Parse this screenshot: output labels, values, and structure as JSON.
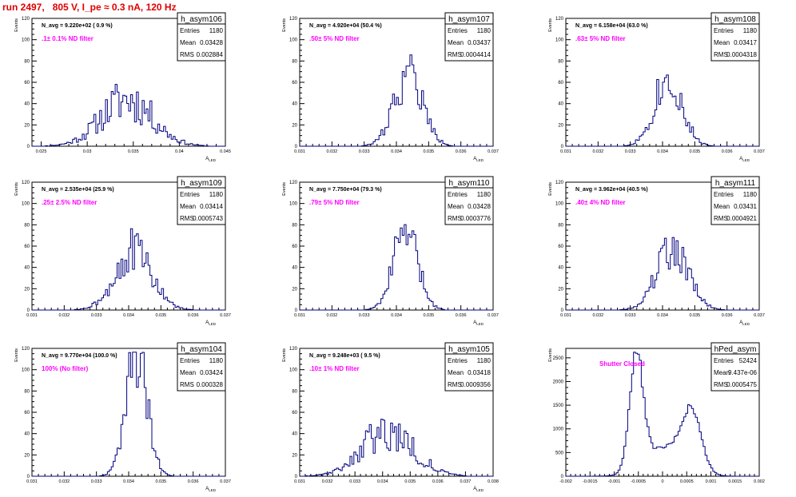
{
  "run_title": "run 2497,   805 V, I_pe ≈ 0.3 nA, 120 Hz",
  "colors": {
    "title": "#e00000",
    "hist": "#000080",
    "annotation": "#ff00ff",
    "frame": "#000000"
  },
  "chart_data": [
    {
      "type": "histogram",
      "name": "h_asym106",
      "navg": "N_avg = 9.220e+02 ( 0.9 %)",
      "filter_label": ".1± 0.1% ND filter",
      "stats": {
        "entries": "1180",
        "mean": "0.03428",
        "rms": "0.002884"
      },
      "xlabel": "A_LED",
      "ylabel": "Events",
      "xlim": [
        0.024,
        0.045
      ],
      "ylim": [
        0,
        120
      ],
      "xticks": [
        0.025,
        0.03,
        0.035,
        0.04,
        0.045
      ],
      "xtick_labels": [
        "0.025",
        "0.03",
        "0.035",
        "0.04",
        "0.045"
      ],
      "yticks": [
        0,
        20,
        40,
        60,
        80,
        100,
        120
      ],
      "peaks": [
        {
          "mu": 0.0343,
          "sigma": 0.0028,
          "amp": 44
        }
      ],
      "noise": 0.5,
      "seed": 11
    },
    {
      "type": "histogram",
      "name": "h_asym107",
      "navg": "N_avg = 4.920e+04 (50.4 %)",
      "filter_label": ".50± 5% ND filter",
      "stats": {
        "entries": "1180",
        "mean": "0.03437",
        "rms": "0.0004414"
      },
      "xlabel": "A_LED",
      "ylabel": "Events",
      "xlim": [
        0.031,
        0.037
      ],
      "ylim": [
        0,
        120
      ],
      "xticks": [
        0.031,
        0.032,
        0.033,
        0.034,
        0.035,
        0.036,
        0.037
      ],
      "xtick_labels": [
        "0.031",
        "0.032",
        "0.033",
        "0.034",
        "0.035",
        "0.036",
        "0.037"
      ],
      "yticks": [
        0,
        20,
        40,
        60,
        80,
        100,
        120
      ],
      "peaks": [
        {
          "mu": 0.03437,
          "sigma": 0.00044,
          "amp": 68
        }
      ],
      "noise": 0.35,
      "seed": 22
    },
    {
      "type": "histogram",
      "name": "h_asym108",
      "navg": "N_avg = 6.158e+04 (63.0 %)",
      "filter_label": ".63± 5% ND filter",
      "stats": {
        "entries": "1180",
        "mean": "0.03417",
        "rms": "0.0004318"
      },
      "xlabel": "A_LED",
      "ylabel": "Events",
      "xlim": [
        0.031,
        0.037
      ],
      "ylim": [
        0,
        120
      ],
      "xticks": [
        0.031,
        0.032,
        0.033,
        0.034,
        0.035,
        0.036,
        0.037
      ],
      "xtick_labels": [
        "0.031",
        "0.032",
        "0.033",
        "0.034",
        "0.035",
        "0.036",
        "0.037"
      ],
      "yticks": [
        0,
        20,
        40,
        60,
        80,
        100,
        120
      ],
      "peaks": [
        {
          "mu": 0.03417,
          "sigma": 0.00043,
          "amp": 64
        }
      ],
      "noise": 0.35,
      "seed": 33
    },
    {
      "type": "histogram",
      "name": "h_asym109",
      "navg": "N_avg = 2.535e+04 (25.9 %)",
      "filter_label": ".25± 2.5% ND filter",
      "stats": {
        "entries": "1180",
        "mean": "0.03414",
        "rms": "0.0005743"
      },
      "xlabel": "A_LED",
      "ylabel": "Events",
      "xlim": [
        0.031,
        0.037
      ],
      "ylim": [
        0,
        120
      ],
      "xticks": [
        0.031,
        0.032,
        0.033,
        0.034,
        0.035,
        0.036,
        0.037
      ],
      "xtick_labels": [
        "0.031",
        "0.032",
        "0.033",
        "0.034",
        "0.035",
        "0.036",
        "0.037"
      ],
      "yticks": [
        0,
        20,
        40,
        60,
        80,
        100,
        120
      ],
      "peaks": [
        {
          "mu": 0.03414,
          "sigma": 0.00057,
          "amp": 55
        }
      ],
      "noise": 0.4,
      "seed": 44
    },
    {
      "type": "histogram",
      "name": "h_asym110",
      "navg": "N_avg = 7.750e+04 (79.3 %)",
      "filter_label": ".79± 5% ND filter",
      "stats": {
        "entries": "1180",
        "mean": "0.03428",
        "rms": "0.0003776"
      },
      "xlabel": "A_LED",
      "ylabel": "Events",
      "xlim": [
        0.031,
        0.037
      ],
      "ylim": [
        0,
        120
      ],
      "xticks": [
        0.031,
        0.032,
        0.033,
        0.034,
        0.035,
        0.036,
        0.037
      ],
      "xtick_labels": [
        "0.031",
        "0.032",
        "0.033",
        "0.034",
        "0.035",
        "0.036",
        "0.037"
      ],
      "yticks": [
        0,
        20,
        40,
        60,
        80,
        100,
        120
      ],
      "peaks": [
        {
          "mu": 0.03428,
          "sigma": 0.00038,
          "amp": 74
        }
      ],
      "noise": 0.3,
      "seed": 55
    },
    {
      "type": "histogram",
      "name": "h_asym111",
      "navg": "N_avg = 3.962e+04 (40.5 %)",
      "filter_label": ".40± 4% ND filter",
      "stats": {
        "entries": "1180",
        "mean": "0.03431",
        "rms": "0.0004921"
      },
      "xlabel": "A_LED",
      "ylabel": "Events",
      "xlim": [
        0.031,
        0.037
      ],
      "ylim": [
        0,
        120
      ],
      "xticks": [
        0.031,
        0.032,
        0.033,
        0.034,
        0.035,
        0.036,
        0.037
      ],
      "xtick_labels": [
        "0.031",
        "0.032",
        "0.033",
        "0.034",
        "0.035",
        "0.036",
        "0.037"
      ],
      "yticks": [
        0,
        20,
        40,
        60,
        80,
        100,
        120
      ],
      "peaks": [
        {
          "mu": 0.03431,
          "sigma": 0.00049,
          "amp": 58
        }
      ],
      "noise": 0.35,
      "seed": 66
    },
    {
      "type": "histogram",
      "name": "h_asym104",
      "navg": "N_avg = 9.770e+04 (100.0 %)",
      "filter_label": "100% (No filter)",
      "stats": {
        "entries": "1180",
        "mean": "0.03424",
        "rms": "0.000328"
      },
      "xlabel": "A_LED",
      "ylabel": "Events",
      "xlim": [
        0.031,
        0.037
      ],
      "ylim": [
        0,
        120
      ],
      "xticks": [
        0.031,
        0.032,
        0.033,
        0.034,
        0.035,
        0.036,
        0.037
      ],
      "xtick_labels": [
        "0.031",
        "0.032",
        "0.033",
        "0.034",
        "0.035",
        "0.036",
        "0.037"
      ],
      "yticks": [
        0,
        20,
        40,
        60,
        80,
        100,
        120
      ],
      "peaks": [
        {
          "mu": 0.03424,
          "sigma": 0.00033,
          "amp": 112
        }
      ],
      "noise": 0.3,
      "seed": 77
    },
    {
      "type": "histogram",
      "name": "h_asym105",
      "navg": "N_avg = 9.248e+03 ( 9.5 %)",
      "filter_label": ".10± 1% ND filter",
      "stats": {
        "entries": "1180",
        "mean": "0.03418",
        "rms": "0.0009356"
      },
      "xlabel": "A_LED",
      "ylabel": "Events",
      "xlim": [
        0.031,
        0.038
      ],
      "ylim": [
        0,
        120
      ],
      "xticks": [
        0.031,
        0.032,
        0.033,
        0.034,
        0.035,
        0.036,
        0.037,
        0.038
      ],
      "xtick_labels": [
        "0.031",
        "0.032",
        "0.033",
        "0.034",
        "0.035",
        "0.036",
        "0.037",
        "0.038"
      ],
      "yticks": [
        0,
        20,
        40,
        60,
        80,
        100,
        120
      ],
      "peaks": [
        {
          "mu": 0.03418,
          "sigma": 0.00094,
          "amp": 42
        }
      ],
      "noise": 0.45,
      "seed": 88
    },
    {
      "type": "histogram",
      "name": "hPed_asym",
      "navg": "",
      "filter_label": "Shutter Closed",
      "stats": {
        "entries": "52424",
        "mean": "9.437e-06",
        "rms": "0.0005475"
      },
      "xlabel": "",
      "ylabel": "Events",
      "xlim": [
        -0.002,
        0.002
      ],
      "ylim": [
        0,
        2700
      ],
      "xticks": [
        -0.002,
        -0.0015,
        -0.001,
        -0.0005,
        0,
        0.0005,
        0.001,
        0.0015,
        0.002
      ],
      "xtick_labels": [
        "-0.002",
        "-0.0015",
        "-0.001",
        "-0.0005",
        "0",
        "0.0005",
        "0.001",
        "0.0015",
        "0.002"
      ],
      "yticks": [
        0,
        500,
        1000,
        1500,
        2000,
        2500
      ],
      "peaks": [
        {
          "mu": -0.00054,
          "sigma": 0.00014,
          "amp": 2400
        },
        {
          "mu": 0.0006,
          "sigma": 0.0002,
          "amp": 1250
        },
        {
          "mu": 2e-05,
          "sigma": 0.0004,
          "amp": 600
        }
      ],
      "noise": 0.06,
      "seed": 99
    }
  ]
}
